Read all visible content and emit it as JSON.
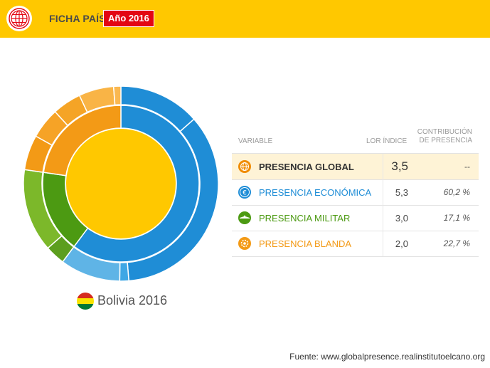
{
  "header": {
    "title": "FICHA PAÍS",
    "year_badge": "Año 2016",
    "logo_icon": "globe-grid-icon"
  },
  "country": {
    "label": "Bolivia 2016",
    "flag_colors": [
      "#d52b1e",
      "#f9e300",
      "#007934"
    ]
  },
  "table": {
    "col_variable": "VARIABLE",
    "col_index": "LOR ÍNDICE",
    "col_contribution_line1": "CONTRIBUCIÓN",
    "col_contribution_line2": "DE PRESENCIA",
    "rows": [
      {
        "name": "PRESENCIA GLOBAL",
        "index": "3,5",
        "contribution": "--",
        "color": "#333333",
        "icon": "globe-icon",
        "icon_color": "#f08c00"
      },
      {
        "name": "PRESENCIA ECONÓMICA",
        "index": "5,3",
        "contribution": "60,2 %",
        "color": "#1f8dd6",
        "icon": "euro-icon",
        "icon_color": "#1f8dd6"
      },
      {
        "name": "PRESENCIA MILITAR",
        "index": "3,0",
        "contribution": "17,1 %",
        "color": "#4c9a12",
        "icon": "plane-icon",
        "icon_color": "#4c9a12"
      },
      {
        "name": "PRESENCIA BLANDA",
        "index": "2,0",
        "contribution": "22,7 %",
        "color": "#f39a16",
        "icon": "gear-icon",
        "icon_color": "#f39a16"
      }
    ]
  },
  "chart_data": {
    "type": "pie",
    "center_color": "#ffc800",
    "inner_ring": [
      {
        "name": "Económica",
        "value": 60.2,
        "color": "#1f8dd6"
      },
      {
        "name": "Militar",
        "value": 17.1,
        "color": "#4c9a12"
      },
      {
        "name": "Blanda",
        "value": 22.7,
        "color": "#f39a16"
      }
    ],
    "outer_ring": [
      {
        "value": 13.5,
        "color": "#1f8dd6"
      },
      {
        "value": 35.2,
        "color": "#1f8dd6"
      },
      {
        "value": 1.5,
        "color": "#3fa7e5"
      },
      {
        "value": 10.0,
        "color": "#5fb4e6"
      },
      {
        "value": 3.3,
        "color": "#5c9e1e"
      },
      {
        "value": 13.8,
        "color": "#7cb82a"
      },
      {
        "value": 5.8,
        "color": "#f39a16"
      },
      {
        "value": 5.1,
        "color": "#f6a326"
      },
      {
        "value": 4.8,
        "color": "#f5a426"
      },
      {
        "value": 5.8,
        "color": "#f9b446"
      },
      {
        "value": 1.2,
        "color": "#fab850"
      }
    ]
  },
  "footer": {
    "source": "Fuente: www.globalpresence.realinstitutoelcano.org"
  }
}
